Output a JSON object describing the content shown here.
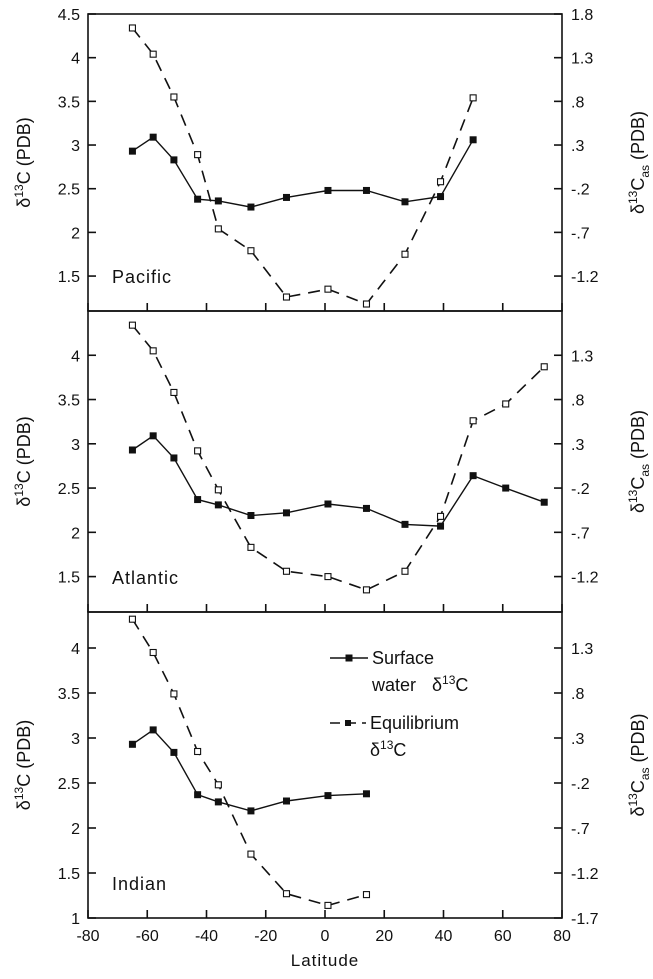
{
  "chart_data": [
    {
      "type": "line",
      "panel": "Pacific",
      "panel_label": "Pacific",
      "ylabel": "δ¹³C (PDB)",
      "ylabel_parts": {
        "a": "δ",
        "sup": "13",
        "b": "C (PDB)"
      },
      "ylabel_right": "δ¹³Cas (PDB)",
      "ylabel_right_parts": {
        "a": "δ",
        "sup": "13",
        "b": "C",
        "sub": "as",
        "c": " (PDB)"
      },
      "ylim": [
        1.1,
        4.5
      ],
      "yticks": [
        "1.5",
        "2",
        "2.5",
        "3",
        "3.5",
        "4",
        "4.5"
      ],
      "ylim_right": [
        -1.6,
        1.8
      ],
      "yticks_right": [
        "-1.2",
        "-.7",
        "-.2",
        ".3",
        ".8",
        "1.3",
        "1.8"
      ],
      "xlim": [
        -80,
        80
      ],
      "series": [
        {
          "name": "Surface water δ13C",
          "style": "solid",
          "marker": "filled-square",
          "x": [
            -65,
            -58,
            -51,
            -43,
            -36,
            -25,
            -13,
            1,
            14,
            27,
            39,
            50
          ],
          "y": [
            2.93,
            3.09,
            2.83,
            2.38,
            2.36,
            2.29,
            2.4,
            2.48,
            2.48,
            2.35,
            2.41,
            3.06
          ]
        },
        {
          "name": "Equilibrium δ13C",
          "style": "dashed",
          "marker": "open-square",
          "axis": "right",
          "x": [
            -65,
            -58,
            -51,
            -43,
            -36,
            -25,
            -13,
            1,
            14,
            27,
            39,
            50
          ],
          "y": [
            1.64,
            1.34,
            0.85,
            0.19,
            -0.66,
            -0.91,
            -1.44,
            -1.35,
            -1.52,
            -0.95,
            -0.12,
            0.84
          ]
        }
      ]
    },
    {
      "type": "line",
      "panel": "Atlantic",
      "panel_label": "Atlantic",
      "ylabel": "δ¹³C (PDB)",
      "ylabel_parts": {
        "a": "δ",
        "sup": "13",
        "b": "C (PDB)"
      },
      "ylabel_right": "δ¹³Cas (PDB)",
      "ylabel_right_parts": {
        "a": "δ",
        "sup": "13",
        "b": "C",
        "sub": "as",
        "c": " (PDB)"
      },
      "ylim": [
        1.1,
        4.5
      ],
      "yticks": [
        "1.5",
        "2",
        "2.5",
        "3",
        "3.5",
        "4"
      ],
      "ylim_right": [
        -1.6,
        1.8
      ],
      "yticks_right": [
        "-1.2",
        "-.7",
        "-.2",
        ".3",
        ".8",
        "1.3"
      ],
      "xlim": [
        -80,
        80
      ],
      "series": [
        {
          "name": "Surface water δ13C",
          "style": "solid",
          "marker": "filled-square",
          "x": [
            -65,
            -58,
            -51,
            -43,
            -36,
            -25,
            -13,
            1,
            14,
            27,
            39,
            50,
            61,
            74
          ],
          "y": [
            2.93,
            3.09,
            2.84,
            2.37,
            2.31,
            2.19,
            2.22,
            2.32,
            2.27,
            2.09,
            2.07,
            2.64,
            2.5,
            2.34
          ]
        },
        {
          "name": "Equilibrium δ13C",
          "style": "dashed",
          "marker": "open-square",
          "axis": "right",
          "x": [
            -65,
            -58,
            -51,
            -43,
            -36,
            -25,
            -13,
            1,
            14,
            27,
            39,
            50,
            61,
            74
          ],
          "y": [
            1.64,
            1.35,
            0.88,
            0.22,
            -0.22,
            -0.87,
            -1.14,
            -1.2,
            -1.35,
            -1.14,
            -0.52,
            0.56,
            0.75,
            1.17
          ]
        }
      ]
    },
    {
      "type": "line",
      "panel": "Indian",
      "panel_label": "Indian",
      "ylabel": "δ¹³C (PDB)",
      "ylabel_parts": {
        "a": "δ",
        "sup": "13",
        "b": "C (PDB)"
      },
      "ylabel_right": "δ¹³Cas (PDB)",
      "ylabel_right_parts": {
        "a": "δ",
        "sup": "13",
        "b": "C",
        "sub": "as",
        "c": " (PDB)"
      },
      "ylim": [
        1.0,
        4.4
      ],
      "yticks": [
        "1",
        "1.5",
        "2",
        "2.5",
        "3",
        "3.5",
        "4"
      ],
      "ylim_right": [
        -1.7,
        1.7
      ],
      "yticks_right": [
        "-1.7",
        "-1.2",
        "-.7",
        "-.2",
        ".3",
        ".8",
        "1.3"
      ],
      "xlim": [
        -80,
        80
      ],
      "xlabel": "Latitude",
      "xticks": [
        "-80",
        "-60",
        "-40",
        "-20",
        "0",
        "20",
        "40",
        "60",
        "80"
      ],
      "legend": {
        "position": "center-right",
        "surface_line1": "Surface",
        "surface_line2a": "water",
        "surface_line2b": "δ",
        "surface_line2_sup": "13",
        "surface_line2c": "C",
        "equilibrium_line1": "Equilibrium",
        "equilibrium_line2a": "δ",
        "equilibrium_line2_sup": "13",
        "equilibrium_line2b": "C"
      },
      "series": [
        {
          "name": "Surface water δ13C",
          "style": "solid",
          "marker": "filled-square",
          "x": [
            -65,
            -58,
            -51,
            -43,
            -36,
            -25,
            -13,
            1,
            14
          ],
          "y": [
            2.93,
            3.09,
            2.84,
            2.37,
            2.29,
            2.19,
            2.3,
            2.36,
            2.38
          ]
        },
        {
          "name": "Equilibrium δ13C",
          "style": "dashed",
          "marker": "open-square",
          "axis": "right",
          "x": [
            -65,
            -58,
            -51,
            -43,
            -36,
            -25,
            -13,
            1,
            14
          ],
          "y": [
            1.62,
            1.25,
            0.79,
            0.15,
            -0.22,
            -0.99,
            -1.43,
            -1.56,
            -1.44
          ]
        }
      ]
    }
  ]
}
